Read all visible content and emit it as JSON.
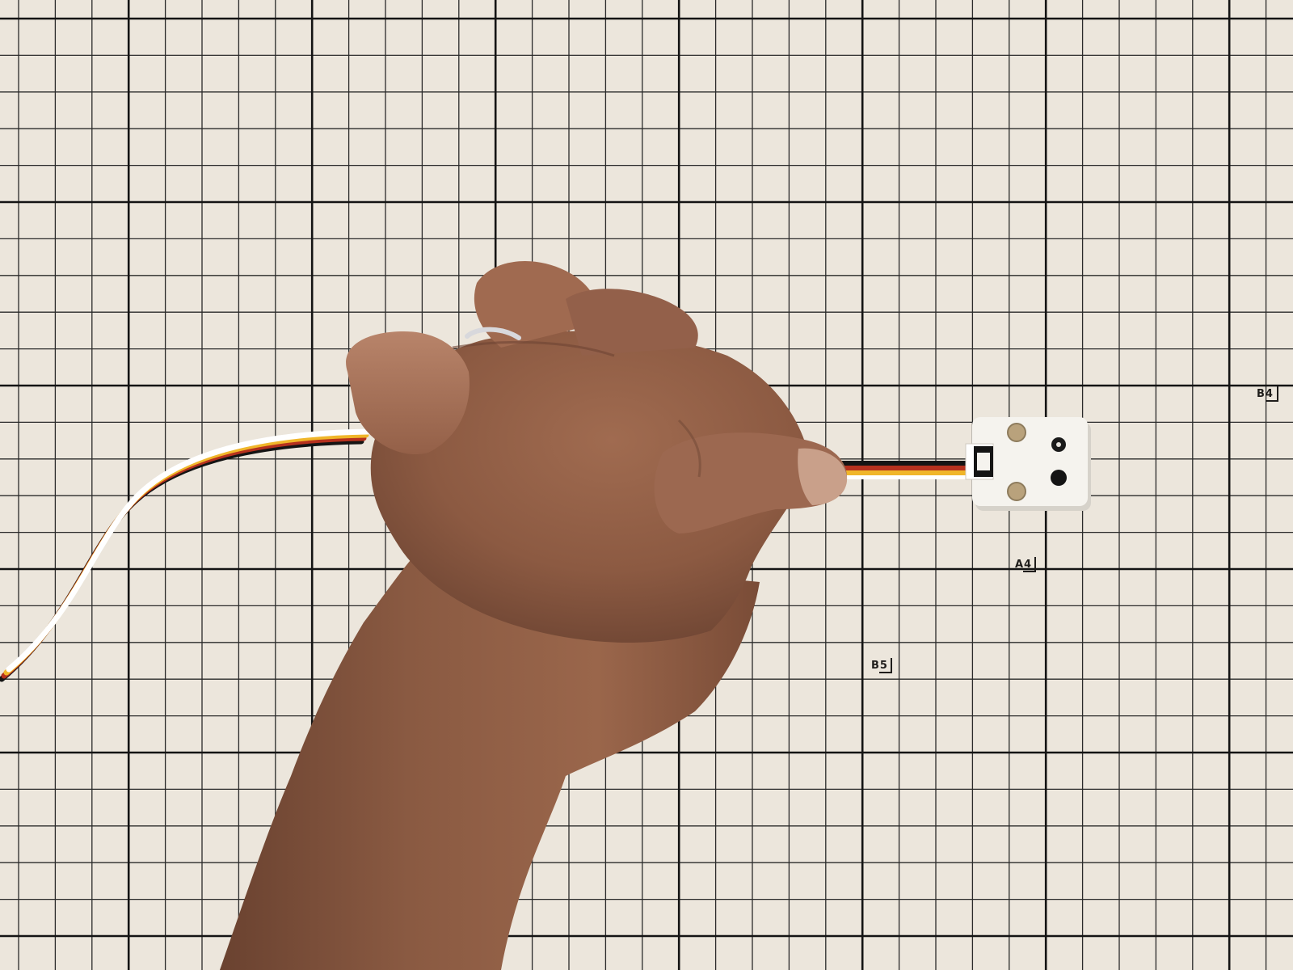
{
  "scene": {
    "description_tag": "",
    "colors": {
      "paper": "#ece6dc",
      "grid_line": "#1c1c1c",
      "skin": "#8a5a42",
      "skin_light": "#b07c60",
      "skin_dark": "#6a4230",
      "sensor_body": "#f5f3ee",
      "cable_white": "#ffffff",
      "cable_yellow": "#f0b62a",
      "cable_red": "#b5311e",
      "cable_black": "#141414",
      "ring": "#d8d8dc"
    },
    "icons": {
      "hand": "hand-icon",
      "sensor": "sensor-module-icon",
      "cable": "cable-icon",
      "ring": "ring-icon"
    }
  },
  "paper_labels": {
    "b4": "B4",
    "a4": "A4",
    "b5": "B5"
  }
}
